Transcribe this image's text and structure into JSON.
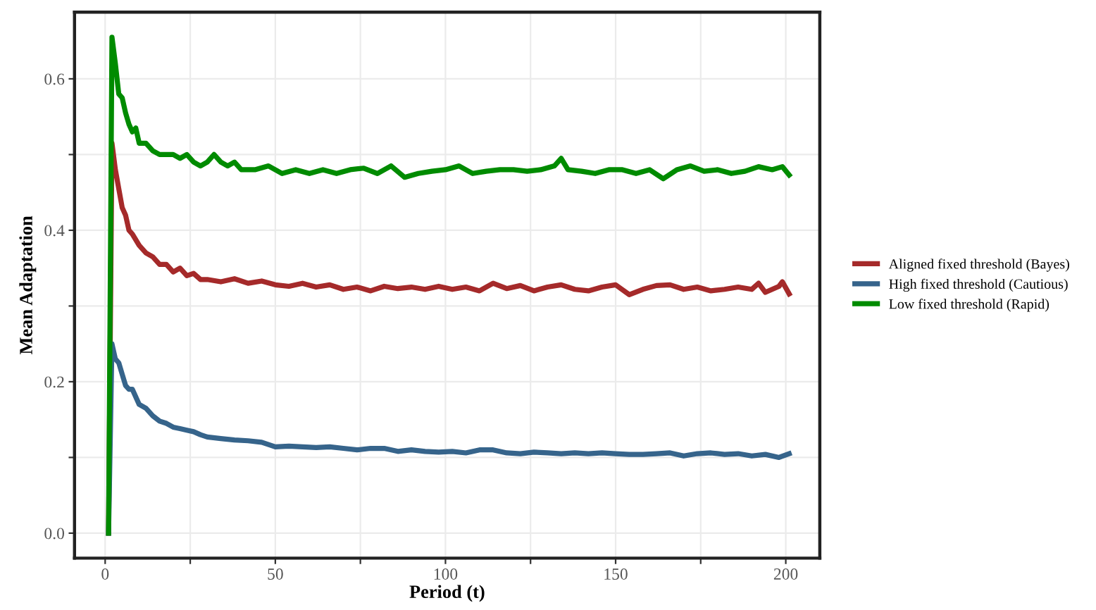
{
  "chart_data": {
    "type": "line",
    "xlabel": "Period (t)",
    "ylabel": "Mean Adaptation",
    "xlim": [
      -9,
      210
    ],
    "ylim": [
      -0.033,
      0.688
    ],
    "xticks": [
      0,
      {
        "value": 25,
        "label": null
      },
      50,
      {
        "value": 75,
        "label": null
      },
      100,
      {
        "value": 125,
        "label": null
      },
      150,
      {
        "value": 175,
        "label": null
      },
      200
    ],
    "yticks": [
      {
        "value": 0,
        "label": "0.0"
      },
      {
        "value": 0.1,
        "label": null
      },
      0.2,
      {
        "value": 0.3,
        "label": null
      },
      0.4,
      {
        "value": 0.5,
        "label": null
      },
      0.6
    ],
    "grid": true,
    "legend": "right",
    "marker": "none",
    "line_style": "solid",
    "series": [
      {
        "name": "Aligned fixed threshold (Bayes)",
        "color": "#a52a2a",
        "x": [
          1,
          2,
          3,
          4,
          5,
          6,
          7,
          8,
          10,
          12,
          14,
          16,
          18,
          20,
          22,
          24,
          26,
          28,
          30,
          34,
          38,
          42,
          46,
          50,
          54,
          58,
          62,
          66,
          70,
          74,
          78,
          82,
          86,
          90,
          94,
          98,
          102,
          106,
          110,
          114,
          118,
          122,
          126,
          130,
          134,
          138,
          142,
          146,
          150,
          154,
          158,
          162,
          166,
          170,
          174,
          178,
          182,
          186,
          190,
          192,
          194,
          198,
          199,
          201
        ],
        "values": [
          0,
          0.515,
          0.48,
          0.455,
          0.43,
          0.42,
          0.4,
          0.395,
          0.38,
          0.37,
          0.365,
          0.355,
          0.355,
          0.345,
          0.35,
          0.34,
          0.343,
          0.335,
          0.335,
          0.332,
          0.336,
          0.33,
          0.333,
          0.328,
          0.326,
          0.33,
          0.325,
          0.328,
          0.322,
          0.325,
          0.32,
          0.326,
          0.323,
          0.325,
          0.322,
          0.326,
          0.322,
          0.325,
          0.32,
          0.33,
          0.323,
          0.327,
          0.32,
          0.325,
          0.328,
          0.322,
          0.32,
          0.325,
          0.328,
          0.315,
          0.322,
          0.327,
          0.328,
          0.322,
          0.325,
          0.32,
          0.322,
          0.325,
          0.322,
          0.33,
          0.318,
          0.326,
          0.332,
          0.316
        ]
      },
      {
        "name": "High fixed threshold (Cautious)",
        "color": "#36648b",
        "x": [
          1,
          2,
          3,
          4,
          5,
          6,
          7,
          8,
          10,
          12,
          14,
          16,
          18,
          20,
          22,
          24,
          26,
          28,
          30,
          34,
          38,
          42,
          46,
          50,
          54,
          58,
          62,
          66,
          70,
          74,
          78,
          82,
          86,
          90,
          94,
          98,
          102,
          106,
          110,
          114,
          118,
          122,
          126,
          130,
          134,
          138,
          142,
          146,
          150,
          154,
          158,
          162,
          166,
          170,
          174,
          178,
          182,
          186,
          190,
          194,
          198,
          201
        ],
        "values": [
          0,
          0.25,
          0.23,
          0.225,
          0.21,
          0.195,
          0.19,
          0.19,
          0.17,
          0.165,
          0.155,
          0.148,
          0.145,
          0.14,
          0.138,
          0.136,
          0.134,
          0.13,
          0.127,
          0.125,
          0.123,
          0.122,
          0.12,
          0.114,
          0.115,
          0.114,
          0.113,
          0.114,
          0.112,
          0.11,
          0.112,
          0.112,
          0.108,
          0.11,
          0.108,
          0.107,
          0.108,
          0.106,
          0.11,
          0.11,
          0.106,
          0.105,
          0.107,
          0.106,
          0.105,
          0.106,
          0.105,
          0.106,
          0.105,
          0.104,
          0.104,
          0.105,
          0.106,
          0.102,
          0.105,
          0.106,
          0.104,
          0.105,
          0.102,
          0.104,
          0.1,
          0.105
        ]
      },
      {
        "name": "Low fixed threshold (Rapid)",
        "color": "#008b00",
        "x": [
          1,
          2,
          3,
          4,
          5,
          6,
          7,
          8,
          9,
          10,
          12,
          14,
          16,
          18,
          20,
          22,
          24,
          26,
          28,
          30,
          32,
          34,
          36,
          38,
          40,
          44,
          48,
          52,
          56,
          60,
          64,
          68,
          72,
          76,
          80,
          84,
          88,
          92,
          96,
          100,
          104,
          108,
          112,
          116,
          120,
          124,
          128,
          132,
          134,
          136,
          140,
          144,
          148,
          152,
          156,
          160,
          164,
          168,
          172,
          176,
          180,
          184,
          188,
          192,
          196,
          199,
          201
        ],
        "values": [
          0,
          0.655,
          0.62,
          0.58,
          0.575,
          0.555,
          0.54,
          0.53,
          0.535,
          0.515,
          0.515,
          0.505,
          0.5,
          0.5,
          0.5,
          0.495,
          0.5,
          0.49,
          0.485,
          0.49,
          0.5,
          0.49,
          0.485,
          0.49,
          0.48,
          0.48,
          0.485,
          0.475,
          0.48,
          0.475,
          0.48,
          0.475,
          0.48,
          0.482,
          0.475,
          0.485,
          0.47,
          0.475,
          0.478,
          0.48,
          0.485,
          0.475,
          0.478,
          0.48,
          0.48,
          0.478,
          0.48,
          0.485,
          0.495,
          0.48,
          0.478,
          0.475,
          0.48,
          0.48,
          0.475,
          0.48,
          0.468,
          0.48,
          0.485,
          0.478,
          0.48,
          0.475,
          0.478,
          0.484,
          0.48,
          0.484,
          0.473
        ]
      }
    ]
  }
}
